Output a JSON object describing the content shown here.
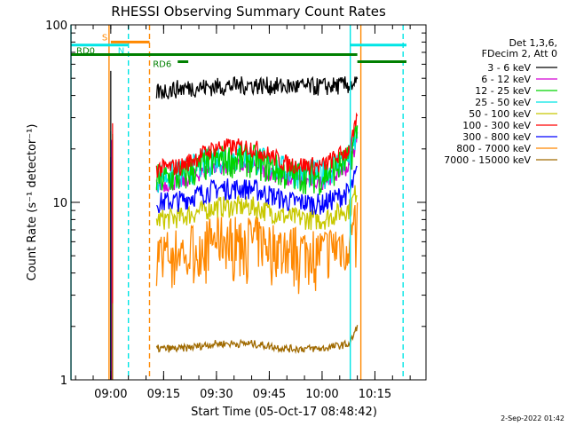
{
  "chart_data": {
    "type": "line",
    "title": "RHESSI Observing Summary Count Rates",
    "xlabel": "Start Time (05-Oct-17 08:48:42)",
    "ylabel": "Count Rate (s⁻¹ detector⁻¹)",
    "y_scale": "log",
    "ylim": [
      1,
      100
    ],
    "y_ticks": [
      {
        "value": 1,
        "label": "1"
      },
      {
        "value": 10,
        "label": "10"
      },
      {
        "value": 100,
        "label": "100"
      }
    ],
    "xlim": [
      "08:48:42",
      "10:29:30"
    ],
    "x_ticks": [
      {
        "time": "09:00",
        "label": "09:00"
      },
      {
        "time": "09:15",
        "label": "09:15"
      },
      {
        "time": "09:30",
        "label": "09:30"
      },
      {
        "time": "09:45",
        "label": "09:45"
      },
      {
        "time": "10:00",
        "label": "10:00"
      },
      {
        "time": "10:15",
        "label": "10:15"
      }
    ],
    "legend_header": [
      "Det 1,3,6,",
      "FDecim 2, Att 0"
    ],
    "legend_position": "right",
    "series": [
      {
        "name": "3 - 6 keV",
        "color": "#000000",
        "x": [
          "09:13",
          "09:20",
          "09:30",
          "09:40",
          "09:50",
          "10:00",
          "10:08",
          "10:10"
        ],
        "y": [
          42,
          44,
          45,
          46,
          45,
          45,
          46,
          47
        ]
      },
      {
        "name": "6 - 12 keV",
        "color": "#d400d4",
        "x": [
          "09:13",
          "09:20",
          "09:30",
          "09:40",
          "09:50",
          "10:00",
          "10:08",
          "10:10"
        ],
        "y": [
          12.5,
          13,
          16,
          16,
          13.5,
          13,
          16,
          23
        ]
      },
      {
        "name": "12 - 25 keV",
        "color": "#00d400",
        "x": [
          "09:13",
          "09:20",
          "09:30",
          "09:40",
          "09:50",
          "10:00",
          "10:08",
          "10:10"
        ],
        "y": [
          13.5,
          14,
          17.5,
          17.5,
          14.5,
          14,
          17.5,
          26
        ]
      },
      {
        "name": "25 - 50 keV",
        "color": "#00e5e5",
        "x": [
          "09:13",
          "09:20",
          "09:30",
          "09:40",
          "09:50",
          "10:00",
          "10:08",
          "10:10"
        ],
        "y": [
          14,
          14.5,
          18,
          18,
          15,
          14.5,
          18,
          24
        ]
      },
      {
        "name": "50 - 100 keV",
        "color": "#c8c800",
        "x": [
          "09:13",
          "09:20",
          "09:30",
          "09:40",
          "09:50",
          "10:00",
          "10:08",
          "10:10"
        ],
        "y": [
          8,
          8.3,
          9.5,
          9.5,
          8.3,
          8,
          9.3,
          12
        ]
      },
      {
        "name": "100 - 300 keV",
        "color": "#ff0000",
        "x": [
          "09:13",
          "09:20",
          "09:30",
          "09:40",
          "09:50",
          "10:00",
          "10:08",
          "10:10"
        ],
        "y": [
          15.5,
          16,
          20.5,
          20.5,
          16.5,
          16,
          20,
          29
        ]
      },
      {
        "name": "300 - 800 keV",
        "color": "#0000ff",
        "x": [
          "09:13",
          "09:20",
          "09:30",
          "09:40",
          "09:50",
          "10:00",
          "10:08",
          "10:10"
        ],
        "y": [
          10,
          10.3,
          12,
          12,
          10.2,
          9.8,
          11.5,
          15
        ]
      },
      {
        "name": "800 - 7000 keV",
        "color": "#ff8800",
        "x": [
          "09:13",
          "09:20",
          "09:30",
          "09:40",
          "09:50",
          "10:00",
          "10:08",
          "10:10"
        ],
        "y": [
          5.2,
          5.4,
          6.3,
          6.3,
          5.5,
          5.3,
          6.2,
          7.8
        ]
      },
      {
        "name": "7000 - 15000 keV",
        "color": "#a06a00",
        "x": [
          "09:13",
          "09:20",
          "09:30",
          "09:40",
          "09:50",
          "10:00",
          "10:08",
          "10:10"
        ],
        "y": [
          1.5,
          1.5,
          1.6,
          1.6,
          1.5,
          1.5,
          1.6,
          2
        ]
      }
    ],
    "flags": [
      {
        "label": "S",
        "color": "#ff8800",
        "level": 80,
        "start": "09:00",
        "end": "09:11"
      },
      {
        "label": "N",
        "color": "#00e5e5",
        "level": 77,
        "start": "08:48",
        "end": "09:05"
      },
      {
        "label": "",
        "color": "#00e5e5",
        "level": 77,
        "start": "10:08",
        "end": "10:24"
      },
      {
        "label": "RD0",
        "color": "#008000",
        "level": 68,
        "start": "08:48",
        "end": "10:10"
      },
      {
        "label": "RD6",
        "color": "#008000",
        "level": 62,
        "start": "09:19",
        "end": "09:22"
      },
      {
        "label": "",
        "color": "#008000",
        "level": 62,
        "start": "10:10",
        "end": "10:24"
      }
    ],
    "vertical_lines": [
      {
        "time": "08:48:42",
        "color": "#00e5e5",
        "style": "solid"
      },
      {
        "time": "08:59:30",
        "color": "#ff8800",
        "style": "solid"
      },
      {
        "time": "09:05",
        "color": "#00e5e5",
        "style": "dashed"
      },
      {
        "time": "09:11",
        "color": "#ff8800",
        "style": "dashed"
      },
      {
        "time": "10:08",
        "color": "#00e5e5",
        "style": "solid"
      },
      {
        "time": "10:11",
        "color": "#ff8800",
        "style": "solid"
      },
      {
        "time": "10:23",
        "color": "#00e5e5",
        "style": "dashed"
      }
    ]
  },
  "footer": {
    "timestamp": "2-Sep-2022 01:42"
  }
}
